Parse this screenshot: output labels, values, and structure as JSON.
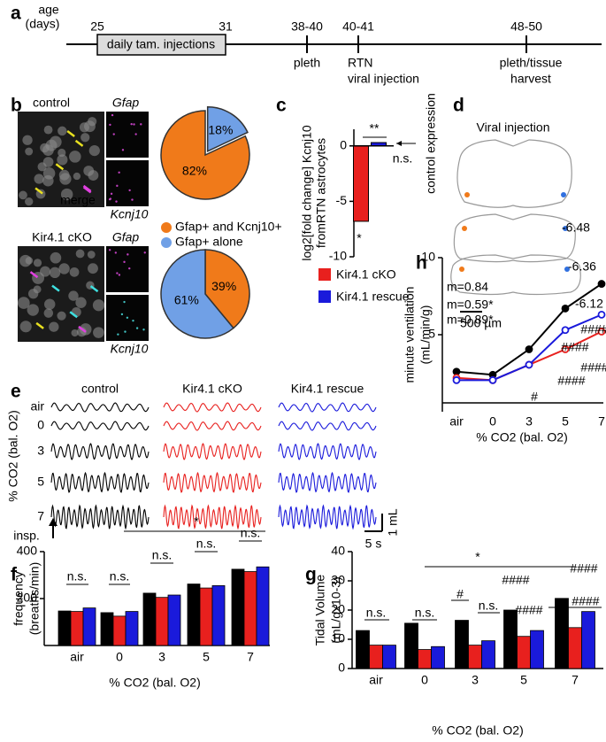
{
  "panel_labels": [
    "a",
    "b",
    "c",
    "d",
    "e",
    "f",
    "g",
    "h"
  ],
  "timeline": {
    "age_label": [
      "age",
      "(days)"
    ],
    "ages": [
      "25",
      "31",
      "38-40",
      "40-41",
      "48-50"
    ],
    "injections": "daily tam. injections",
    "events": [
      [
        "pleth"
      ],
      [
        "RTN",
        "viral injection"
      ],
      [
        "pleth/tissue",
        "harvest"
      ]
    ]
  },
  "micrographs": {
    "rows": [
      {
        "title": "control",
        "color": "#000000",
        "channels": [
          "Gfap",
          "Kcnj10"
        ]
      },
      {
        "title": "Kir4.1 cKO",
        "color": "#e8201e",
        "channels": [
          "Gfap",
          "Kcnj10"
        ]
      }
    ],
    "merge": "merge"
  },
  "injection_sites": {
    "title": "Viral injection",
    "levels": [
      "-6.48",
      "-6.36",
      "-6.12"
    ],
    "scale": "500 µm"
  },
  "traces": {
    "columns": [
      {
        "name": "control",
        "color": "#000000"
      },
      {
        "name": "Kir4.1 cKO",
        "color": "#e8201e"
      },
      {
        "name": "Kir4.1 rescue",
        "color": "#1a1adb"
      }
    ],
    "rows": [
      "air",
      "0",
      "3",
      "5",
      "7"
    ],
    "axis_label": "% CO2 (bal. O2)",
    "insp": "insp.",
    "volume_scale": "1 mL",
    "time_scale": "5 s"
  },
  "chart_data": [
    {
      "type": "pie",
      "categories": [
        "Gfap+ and Kcnj10+",
        "Gfap+ alone"
      ],
      "values": [
        82,
        18
      ],
      "value_labels": [
        "82%",
        "18%"
      ],
      "colors": [
        "#f07a1a",
        "#70a0e6"
      ],
      "direction": "counterclockwise",
      "legend": true
    },
    {
      "type": "pie",
      "categories": [
        "Gfap+ and Kcnj10+",
        "Gfap+ alone"
      ],
      "values": [
        39,
        61
      ],
      "value_labels": [
        "39%",
        "61%"
      ],
      "colors": [
        "#f07a1a",
        "#70a0e6"
      ],
      "direction": "clockwise",
      "legend": false
    },
    {
      "type": "bar",
      "y_label": [
        "log2[fold change] Kcnj10",
        "fromRTN astrocytes"
      ],
      "categories": [
        "Kir4.1 cKO",
        "Kir4.1 rescue"
      ],
      "values": [
        -6.8,
        0.3
      ],
      "colors": [
        "#e8201e",
        "#1a1adb"
      ],
      "ylim": [
        -10,
        1.5
      ],
      "yticks": [
        -10,
        -5,
        0
      ],
      "annotations": [
        {
          "text": "**",
          "color": "#000000"
        },
        {
          "text": "*",
          "color": "#000000"
        },
        {
          "text": "n.s.",
          "color": "#000000"
        },
        {
          "text": "control expression",
          "color": "#000000"
        }
      ]
    },
    {
      "type": "line",
      "y_label": [
        "minute ventilation",
        "(mL/min/g)"
      ],
      "x_label": "% CO2 (bal. O2)",
      "categories": [
        "air",
        "0",
        "3",
        "5",
        "7"
      ],
      "ylim": [
        0,
        10
      ],
      "yticks": [
        5,
        10
      ],
      "series": [
        {
          "name": "control",
          "color": "#000000",
          "values": [
            2.6,
            2.4,
            4.05,
            6.7,
            8.3
          ]
        },
        {
          "name": "Kir4.1 cKO",
          "color": "#e8201e",
          "values": [
            2.2,
            2.05,
            3.05,
            4.05,
            5.2
          ]
        },
        {
          "name": "Kir4.1 rescue",
          "color": "#1a1adb",
          "values": [
            2.05,
            2.05,
            3.05,
            5.3,
            6.3
          ]
        }
      ],
      "annotations": [
        {
          "text": "m=0.84",
          "color": "#000000"
        },
        {
          "text": "m=0.59*",
          "color": "#e8201e"
        },
        {
          "text": "m=0.89*",
          "color": "#1a1adb"
        },
        {
          "text": "####",
          "color": "#1a1adb"
        },
        {
          "text": "####",
          "color": "#1a1adb"
        },
        {
          "text": "####",
          "color": "#e8201e"
        },
        {
          "text": "####",
          "color": "#e8201e"
        },
        {
          "text": "#",
          "color": "#e8201e"
        }
      ]
    },
    {
      "type": "bar",
      "y_label": [
        "frequency",
        "(breaths/min)"
      ],
      "x_label": "% CO2 (bal. O2)",
      "categories": [
        "air",
        "0",
        "3",
        "5",
        "7"
      ],
      "ylim": [
        0,
        400
      ],
      "yticks": [
        200,
        400
      ],
      "series": [
        {
          "name": "control",
          "color": "#000000",
          "values": [
            147,
            140,
            223,
            262,
            325
          ]
        },
        {
          "name": "Kir4.1 cKO",
          "color": "#e8201e",
          "values": [
            145,
            125,
            205,
            245,
            315
          ]
        },
        {
          "name": "Kir4.1 rescue",
          "color": "#1a1adb",
          "values": [
            160,
            145,
            215,
            255,
            335
          ]
        }
      ],
      "annotations": [
        {
          "text": "n.s.",
          "color": "#000000"
        },
        {
          "text": "n.s.",
          "color": "#000000"
        },
        {
          "text": "n.s.",
          "color": "#000000"
        },
        {
          "text": "n.s.",
          "color": "#000000"
        },
        {
          "text": "n.s.",
          "color": "#000000"
        },
        {
          "text": "*",
          "color": "#000000"
        }
      ]
    },
    {
      "type": "bar",
      "y_label": [
        "Tidal Volume",
        "(mL/gx10-3)"
      ],
      "x_label": "% CO2 (bal. O2)",
      "categories": [
        "air",
        "0",
        "3",
        "5",
        "7"
      ],
      "ylim": [
        0,
        40
      ],
      "yticks": [
        0,
        10,
        20,
        30,
        40
      ],
      "series": [
        {
          "name": "control",
          "color": "#000000",
          "values": [
            13,
            15.5,
            16.5,
            20,
            24
          ]
        },
        {
          "name": "Kir4.1 cKO",
          "color": "#e8201e",
          "values": [
            8,
            6.5,
            8,
            11,
            14
          ]
        },
        {
          "name": "Kir4.1 rescue",
          "color": "#1a1adb",
          "values": [
            8,
            7.5,
            9.5,
            13,
            19.5
          ]
        }
      ],
      "annotations": [
        {
          "text": "n.s.",
          "color": "#000000"
        },
        {
          "text": "n.s.",
          "color": "#000000"
        },
        {
          "text": "#",
          "color": "#000000"
        },
        {
          "text": "n.s.",
          "color": "#000000"
        },
        {
          "text": "####",
          "color": "#000000"
        },
        {
          "text": "####",
          "color": "#000000"
        },
        {
          "text": "####",
          "color": "#000000"
        },
        {
          "text": "####",
          "color": "#000000"
        },
        {
          "text": "*",
          "color": "#000000"
        }
      ]
    }
  ]
}
